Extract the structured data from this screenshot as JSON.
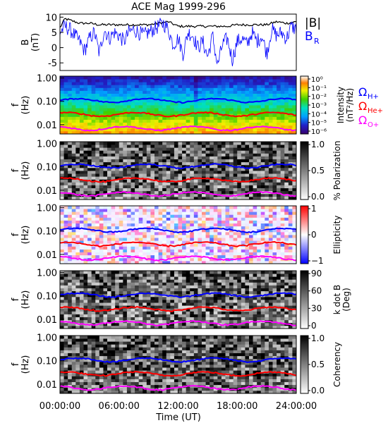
{
  "chart_data": [
    {
      "type": "line",
      "title": "ACE Mag 1999-296",
      "ylabel": "B",
      "yunit": "(nT)",
      "ylim": [
        -7.5,
        11
      ],
      "yticks": [
        "10",
        "5",
        "0",
        "-5"
      ],
      "yticks_values": [
        10,
        5,
        0,
        -5
      ],
      "series": [
        {
          "name": "|B|",
          "color": "#000000",
          "x_hours": [
            0,
            0.5,
            1,
            2,
            3,
            4,
            5,
            6,
            7,
            8,
            9,
            10,
            11,
            12,
            13,
            14,
            15,
            16,
            17,
            18,
            19,
            20,
            21,
            22,
            23,
            24
          ],
          "values": [
            6.5,
            9.5,
            9,
            8,
            8,
            7.5,
            7.5,
            7.5,
            7.5,
            7.5,
            7.5,
            8,
            8.5,
            7,
            7,
            7,
            7,
            7,
            7,
            7.5,
            7.5,
            7.5,
            7.5,
            8.5,
            8,
            8.5
          ]
        },
        {
          "name": "B_R",
          "color": "#0000ff",
          "x_hours": [
            0,
            0.5,
            1,
            1.5,
            2,
            2.5,
            3,
            3.5,
            4,
            4.5,
            5,
            5.5,
            6,
            6.5,
            7,
            7.5,
            8,
            8.5,
            9,
            9.5,
            10,
            10.5,
            11,
            11.5,
            12,
            12.5,
            13,
            13.5,
            14,
            14.5,
            15,
            15.5,
            16,
            16.5,
            17,
            17.5,
            18,
            18.5,
            19,
            19.5,
            20,
            20.5,
            21,
            21.5,
            22,
            22.5,
            23,
            23.5,
            24
          ],
          "values": [
            5,
            7,
            6,
            4,
            2,
            -1,
            3,
            5,
            -2,
            6,
            3,
            5,
            4,
            2,
            5,
            6,
            5,
            4,
            5,
            6,
            7,
            8,
            6,
            1,
            3,
            -2,
            5,
            4,
            0,
            2,
            -3,
            4,
            -6,
            1,
            3,
            -4,
            2,
            3,
            1,
            5,
            2,
            4,
            -2,
            6,
            4,
            5,
            3,
            7,
            6
          ]
        }
      ]
    },
    {
      "type": "heatmap",
      "ylabel": "f",
      "yunit": "(Hz)",
      "yscale": "log",
      "ylim": [
        0.004,
        1.2
      ],
      "yticks": [
        "1.00",
        "0.10",
        "0.01"
      ],
      "yticks_values": [
        1,
        0.1,
        0.01
      ],
      "colorbar": {
        "label": "Intensity",
        "unit": "(nT²/Hz)",
        "scale": "log",
        "ticks": [
          "10⁰",
          "10⁻¹",
          "10⁻²",
          "10⁻³",
          "10⁻⁴",
          "10⁻⁵",
          "10⁻⁶"
        ],
        "palette": "rainbow"
      },
      "legend": {
        "placement": "right"
      }
    },
    {
      "type": "heatmap",
      "ylabel": "f",
      "yunit": "(Hz)",
      "yscale": "log",
      "yticks": [
        "1.00",
        "0.10",
        "0.01"
      ],
      "yticks_values": [
        1,
        0.1,
        0.01
      ],
      "colorbar": {
        "label": "% Polarization",
        "ticks": [
          "1.0",
          "0.5",
          "0.0"
        ],
        "palette": "grayscale"
      }
    },
    {
      "type": "heatmap",
      "ylabel": "f",
      "yunit": "(Hz)",
      "yscale": "log",
      "yticks": [
        "1.00",
        "0.10",
        "0.01"
      ],
      "yticks_values": [
        1,
        0.1,
        0.01
      ],
      "colorbar": {
        "label": "Ellipticity",
        "ticks": [
          "1",
          "0",
          "−1"
        ],
        "palette": "blue-white-red"
      }
    },
    {
      "type": "heatmap",
      "ylabel": "f",
      "yunit": "(Hz)",
      "yscale": "log",
      "yticks": [
        "1.00",
        "0.10",
        "0.01"
      ],
      "yticks_values": [
        1,
        0.1,
        0.01
      ],
      "colorbar": {
        "label": "k dot B",
        "unit": "(Deg)",
        "ticks": [
          "90",
          "60",
          "30",
          "0"
        ],
        "palette": "grayscale"
      }
    },
    {
      "type": "heatmap",
      "ylabel": "f",
      "yunit": "(Hz)",
      "yscale": "log",
      "yticks": [
        "1.00",
        "0.10",
        "0.01"
      ],
      "yticks_values": [
        1,
        0.1,
        0.01
      ],
      "colorbar": {
        "label": "Coherency",
        "ticks": [
          "1.0",
          "0.5",
          "0.0"
        ],
        "palette": "grayscale"
      }
    }
  ],
  "gyro_lines": [
    {
      "label": "Ω",
      "sub": "H+",
      "color": "#0000ff",
      "f_hz": 0.11
    },
    {
      "label": "Ω",
      "sub": "He+",
      "color": "#ff0000",
      "f_hz": 0.028
    },
    {
      "label": "Ω",
      "sub": "O+",
      "color": "#ff00ff",
      "f_hz": 0.007
    }
  ],
  "x_axis": {
    "label": "Time (UT)",
    "ticks": [
      "00:00:00",
      "06:00:00",
      "12:00:00",
      "18:00:00",
      "24:00:00"
    ],
    "ticks_hours": [
      0,
      6,
      12,
      18,
      24
    ]
  },
  "legend_b": {
    "total": "|B|",
    "radial": "B",
    "radial_sub": "R"
  }
}
